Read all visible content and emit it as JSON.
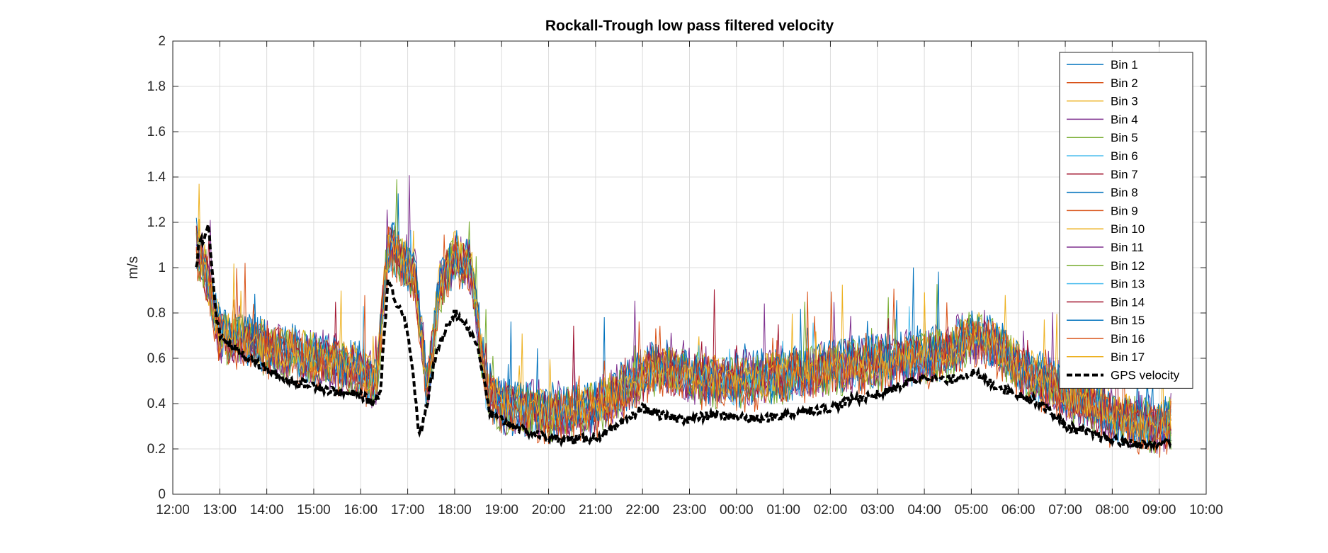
{
  "chart_data": {
    "type": "line",
    "title": "Rockall-Trough low pass filtered velocity",
    "xlabel": "",
    "ylabel": "m/s",
    "x_unit": "hours since 12:00",
    "xlim": [
      "12:00",
      "10:00"
    ],
    "ylim": [
      0,
      2
    ],
    "x_ticks": [
      "12:00",
      "13:00",
      "14:00",
      "15:00",
      "16:00",
      "17:00",
      "18:00",
      "19:00",
      "20:00",
      "21:00",
      "22:00",
      "23:00",
      "00:00",
      "01:00",
      "02:00",
      "03:00",
      "04:00",
      "05:00",
      "06:00",
      "07:00",
      "08:00",
      "09:00",
      "10:00"
    ],
    "y_ticks": [
      "0",
      "0.2",
      "0.4",
      "0.6",
      "0.8",
      "1",
      "1.2",
      "1.4",
      "1.6",
      "1.8",
      "2"
    ],
    "grid": true,
    "legend_position": "top-right",
    "series_colors": [
      "#0072BD",
      "#D95319",
      "#EDB120",
      "#7E2F8E",
      "#77AC30",
      "#4DBEEE",
      "#A2142F",
      "#0072BD",
      "#D95319",
      "#EDB120",
      "#7E2F8E",
      "#77AC30",
      "#4DBEEE",
      "#A2142F",
      "#0072BD",
      "#D95319",
      "#EDB120"
    ],
    "bin_envelope": {
      "time": [
        "12:30",
        "12:45",
        "13:00",
        "13:30",
        "14:00",
        "15:00",
        "16:00",
        "16:20",
        "16:35",
        "16:50",
        "17:10",
        "17:25",
        "17:40",
        "18:00",
        "18:20",
        "18:40",
        "19:00",
        "20:00",
        "21:00",
        "22:00",
        "22:20",
        "23:00",
        "00:00",
        "01:00",
        "02:00",
        "03:00",
        "04:00",
        "04:30",
        "05:00",
        "05:30",
        "06:00",
        "06:30",
        "07:00",
        "07:30",
        "08:00",
        "08:30",
        "09:00",
        "09:15"
      ],
      "mean": [
        1.1,
        0.95,
        0.7,
        0.68,
        0.65,
        0.6,
        0.55,
        0.48,
        1.1,
        1.05,
        0.95,
        0.45,
        0.9,
        1.05,
        1.0,
        0.48,
        0.38,
        0.36,
        0.38,
        0.52,
        0.56,
        0.52,
        0.5,
        0.52,
        0.56,
        0.58,
        0.6,
        0.62,
        0.7,
        0.66,
        0.56,
        0.5,
        0.44,
        0.4,
        0.34,
        0.32,
        0.3,
        0.32
      ]
    },
    "series": [
      {
        "name": "Bin 1"
      },
      {
        "name": "Bin 2"
      },
      {
        "name": "Bin 3"
      },
      {
        "name": "Bin 4"
      },
      {
        "name": "Bin 5"
      },
      {
        "name": "Bin 6"
      },
      {
        "name": "Bin 7"
      },
      {
        "name": "Bin 8"
      },
      {
        "name": "Bin 9"
      },
      {
        "name": "Bin 10"
      },
      {
        "name": "Bin 11"
      },
      {
        "name": "Bin 12"
      },
      {
        "name": "Bin 13"
      },
      {
        "name": "Bin 14"
      },
      {
        "name": "Bin 15"
      },
      {
        "name": "Bin 16"
      },
      {
        "name": "Bin 17"
      },
      {
        "name": "GPS velocity",
        "color": "#000000",
        "style": "dashed",
        "time": [
          "12:30",
          "12:35",
          "12:40",
          "12:45",
          "12:50",
          "12:55",
          "13:00",
          "13:15",
          "13:30",
          "14:00",
          "14:30",
          "15:00",
          "15:30",
          "16:00",
          "16:15",
          "16:25",
          "16:35",
          "16:45",
          "16:55",
          "17:05",
          "17:15",
          "17:25",
          "17:35",
          "17:50",
          "18:00",
          "18:15",
          "18:30",
          "18:45",
          "19:00",
          "19:30",
          "20:00",
          "20:30",
          "21:00",
          "21:30",
          "22:00",
          "22:30",
          "23:00",
          "23:30",
          "00:00",
          "00:30",
          "01:00",
          "01:30",
          "02:00",
          "02:30",
          "03:00",
          "03:30",
          "04:00",
          "04:30",
          "05:00",
          "05:30",
          "06:00",
          "06:30",
          "07:00",
          "07:30",
          "08:00",
          "08:30",
          "09:00",
          "09:15"
        ],
        "values": [
          1.0,
          1.15,
          1.1,
          1.2,
          1.0,
          0.8,
          0.7,
          0.65,
          0.62,
          0.55,
          0.5,
          0.48,
          0.45,
          0.44,
          0.4,
          0.45,
          0.95,
          0.85,
          0.8,
          0.6,
          0.25,
          0.4,
          0.6,
          0.75,
          0.8,
          0.75,
          0.65,
          0.35,
          0.33,
          0.28,
          0.25,
          0.24,
          0.25,
          0.3,
          0.38,
          0.34,
          0.33,
          0.35,
          0.34,
          0.33,
          0.35,
          0.37,
          0.38,
          0.42,
          0.44,
          0.48,
          0.52,
          0.5,
          0.54,
          0.48,
          0.44,
          0.4,
          0.3,
          0.27,
          0.24,
          0.22,
          0.22,
          0.24
        ]
      }
    ]
  }
}
